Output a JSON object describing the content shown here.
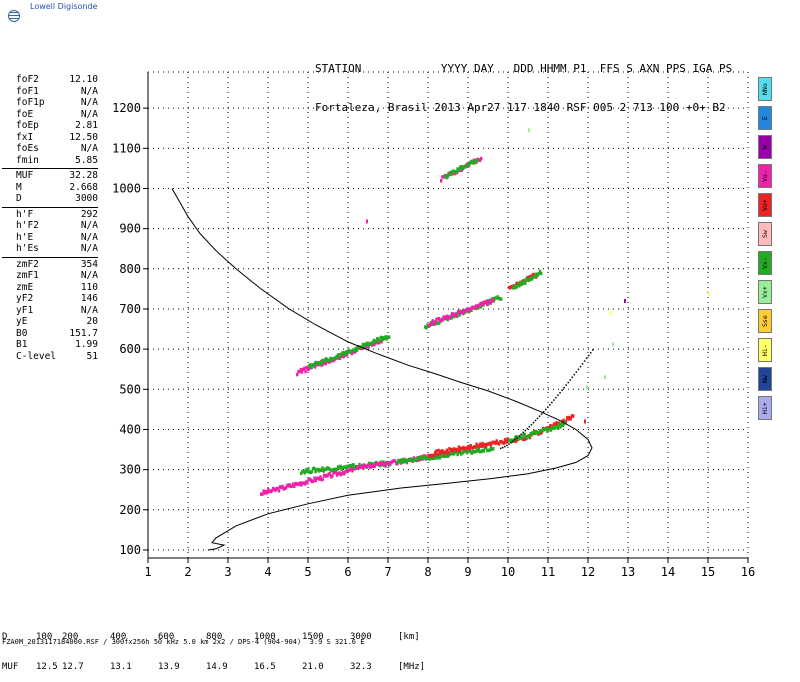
{
  "logo": {
    "name": "Lowell Digisonde",
    "icon": "globe-icon"
  },
  "station": {
    "header": "STATION            YYYY DAY   DDD HHMM P1  FFS S AXN PPS IGA PS",
    "values": "Fortaleza, Brasil 2013 Apr27 117 1840 RSF 005 2 713 100 +0+ B2"
  },
  "params": [
    [
      [
        "foF2",
        "12.10"
      ],
      [
        "foF1",
        "N/A"
      ],
      [
        "foF1p",
        "N/A"
      ],
      [
        "foE",
        "N/A"
      ],
      [
        "foEp",
        "2.81"
      ],
      [
        "fxI",
        "12.50"
      ],
      [
        "foEs",
        "N/A"
      ],
      [
        "fmin",
        "5.85"
      ]
    ],
    [
      [
        "MUF",
        "32.28"
      ],
      [
        "M",
        "2.668"
      ],
      [
        "D",
        "3000"
      ]
    ],
    [
      [
        "h'F",
        "292"
      ],
      [
        "h'F2",
        "N/A"
      ],
      [
        "h'E",
        "N/A"
      ],
      [
        "h'Es",
        "N/A"
      ]
    ],
    [
      [
        "zmF2",
        "354"
      ],
      [
        "zmF1",
        "N/A"
      ],
      [
        "zmE",
        "110"
      ],
      [
        "yF2",
        "146"
      ],
      [
        "yF1",
        "N/A"
      ],
      [
        "yE",
        "20"
      ],
      [
        "B0",
        "151.7"
      ],
      [
        "B1",
        "1.99"
      ],
      [
        "C-level",
        "51"
      ]
    ]
  ],
  "legend": [
    {
      "label": "NNo",
      "color": "#55ddee"
    },
    {
      "label": "E",
      "color": "#2288dd"
    },
    {
      "label": "W",
      "color": "#9900aa"
    },
    {
      "label": "Vo-",
      "color": "#ee22aa"
    },
    {
      "label": "Vo+",
      "color": "#ee2222"
    },
    {
      "label": "Sw",
      "color": "#ffbbbb"
    },
    {
      "label": "Vx-",
      "color": "#22aa22"
    },
    {
      "label": "Vx+",
      "color": "#99ee99"
    },
    {
      "label": "Sse",
      "color": "#ffcc33"
    },
    {
      "label": "Hi-",
      "color": "#ffff66"
    },
    {
      "label": "Nw",
      "color": "#224499"
    },
    {
      "label": "Hi+",
      "color": "#aaaaee"
    }
  ],
  "footer": {
    "d_label": "D",
    "muf_label": "MUF",
    "d_values": [
      "100",
      "200",
      "400",
      "600",
      "800",
      "1000",
      "1500",
      "3000",
      "[km]"
    ],
    "muf_values": [
      "12.5",
      "12.7",
      "13.1",
      "13.9",
      "14.9",
      "16.5",
      "21.0",
      "32.3",
      "[MHz]"
    ],
    "filename": "FZA0M_2013117184000.RSF / 300fx256h 50 kHz 5.0 km 2x2 / DPS-4 (904-904)  3.9 S 321.6 E"
  },
  "chart_data": {
    "type": "scatter",
    "xlim": [
      1,
      16
    ],
    "ylim": [
      80,
      1290
    ],
    "x_ticks": [
      "1",
      "2",
      "3",
      "4",
      "5",
      "6",
      "7",
      "8",
      "9",
      "10",
      "11",
      "12",
      "13",
      "14",
      "15",
      "16"
    ],
    "y_ticks": [
      "100",
      "200",
      "300",
      "400",
      "500",
      "600",
      "700",
      "800",
      "900",
      "1000",
      "1100",
      "1200"
    ],
    "grid": true,
    "profile": [
      [
        1.6,
        1000
      ],
      [
        1.8,
        965
      ],
      [
        2.0,
        930
      ],
      [
        2.3,
        888
      ],
      [
        2.7,
        845
      ],
      [
        3.2,
        800
      ],
      [
        3.8,
        752
      ],
      [
        4.5,
        702
      ],
      [
        5.2,
        660
      ],
      [
        6.0,
        618
      ],
      [
        6.7,
        590
      ],
      [
        7.5,
        560
      ],
      [
        8.2,
        538
      ],
      [
        8.8,
        518
      ],
      [
        9.5,
        496
      ],
      [
        10.2,
        470
      ],
      [
        10.8,
        445
      ],
      [
        11.3,
        422
      ],
      [
        11.7,
        400
      ],
      [
        12.0,
        375
      ],
      [
        12.1,
        354
      ],
      [
        12.0,
        335
      ],
      [
        11.7,
        318
      ],
      [
        11.2,
        304
      ],
      [
        10.5,
        290
      ],
      [
        9.6,
        278
      ],
      [
        8.5,
        266
      ],
      [
        7.3,
        254
      ],
      [
        6.0,
        236
      ],
      [
        5.0,
        215
      ],
      [
        4.0,
        190
      ],
      [
        3.2,
        160
      ],
      [
        2.7,
        130
      ],
      [
        2.6,
        118
      ],
      [
        2.9,
        112
      ],
      [
        2.7,
        103
      ],
      [
        2.5,
        100
      ]
    ],
    "traces": [
      {
        "color": "#ee22aa",
        "x0": 3.8,
        "x1": 6.2,
        "y0": 240,
        "y1": 302
      },
      {
        "color": "#22aa22",
        "x0": 4.8,
        "x1": 7.0,
        "y0": 295,
        "y1": 315
      },
      {
        "color": "#ee22aa",
        "x0": 6.2,
        "x1": 8.6,
        "y0": 302,
        "y1": 340
      },
      {
        "color": "#22aa22",
        "x0": 7.2,
        "x1": 9.6,
        "y0": 318,
        "y1": 352
      },
      {
        "color": "#ee2222",
        "x0": 8.0,
        "x1": 10.4,
        "y0": 338,
        "y1": 378
      },
      {
        "color": "#ee2222",
        "x0": 10.4,
        "x1": 11.6,
        "y0": 378,
        "y1": 430
      },
      {
        "color": "#22aa22",
        "x0": 10.0,
        "x1": 11.4,
        "y0": 372,
        "y1": 412
      },
      {
        "color": "#ee22aa",
        "x0": 4.7,
        "x1": 6.9,
        "y0": 540,
        "y1": 625
      },
      {
        "color": "#22aa22",
        "x0": 5.0,
        "x1": 7.0,
        "y0": 555,
        "y1": 632
      },
      {
        "color": "#22aa22",
        "x0": 7.9,
        "x1": 9.8,
        "y0": 655,
        "y1": 728
      },
      {
        "color": "#ee22aa",
        "x0": 8.0,
        "x1": 9.6,
        "y0": 662,
        "y1": 720
      },
      {
        "color": "#ee2222",
        "x0": 10.0,
        "x1": 10.7,
        "y0": 750,
        "y1": 785
      },
      {
        "color": "#22aa22",
        "x0": 10.1,
        "x1": 10.8,
        "y0": 752,
        "y1": 790
      },
      {
        "color": "#ee22aa",
        "x0": 8.3,
        "x1": 9.3,
        "y0": 1022,
        "y1": 1075
      },
      {
        "color": "#22aa22",
        "x0": 8.4,
        "x1": 9.2,
        "y0": 1028,
        "y1": 1070
      }
    ],
    "x_trace": {
      "color": "#000000",
      "x0": 9.8,
      "x1": 12.1,
      "y0": 355,
      "y1": 600
    },
    "spots": [
      {
        "x": 6.45,
        "y": 918,
        "color": "#ee22aa"
      },
      {
        "x": 10.5,
        "y": 1145,
        "color": "#99ee99"
      },
      {
        "x": 12.9,
        "y": 720,
        "color": "#9900aa"
      },
      {
        "x": 15.0,
        "y": 738,
        "color": "#ffff66"
      },
      {
        "x": 12.55,
        "y": 690,
        "color": "#ffff66"
      },
      {
        "x": 12.6,
        "y": 612,
        "color": "#99ee99"
      },
      {
        "x": 12.4,
        "y": 530,
        "color": "#99ee99"
      },
      {
        "x": 11.95,
        "y": 505,
        "color": "#99ee99"
      },
      {
        "x": 11.9,
        "y": 420,
        "color": "#ee2222"
      }
    ]
  }
}
